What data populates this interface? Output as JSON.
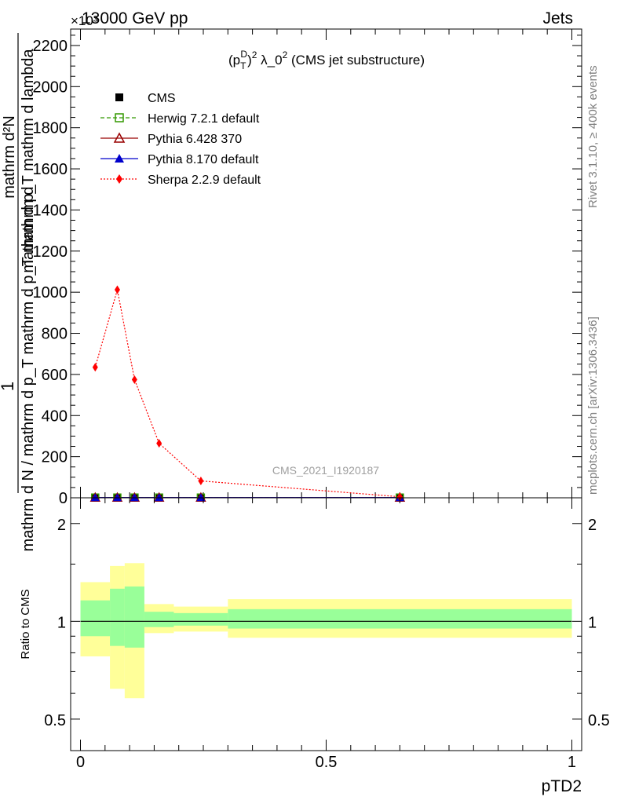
{
  "header": {
    "left": "13000 GeV pp",
    "right": "Jets",
    "exponent": "×10³"
  },
  "side_text": {
    "rivet": "Rivet 3.1.10, ≥ 400k events",
    "mcplots": "mcplots.cern.ch [arXiv:1306.3436]"
  },
  "watermark": "CMS_2021_I1920187",
  "plot_title": "(p_T^D)^2 λ_0^2 (CMS jet substructure)",
  "ylabel_top": {
    "numerator": "mathrm d²N",
    "line1": "mathrm d p_T mathrm d lambda",
    "denominator": "mathrm d N / mathrm d p_T mathrm d p_T mathrm d",
    "one": "1"
  },
  "ratio_ylabel": "Ratio to CMS",
  "xlabel": "pTD2",
  "legend": [
    {
      "label": "CMS",
      "color": "#000000",
      "marker": "square-filled",
      "line": "none"
    },
    {
      "label": "Herwig 7.2.1 default",
      "color": "#339900",
      "marker": "square-open",
      "line": "dashed"
    },
    {
      "label": "Pythia 6.428 370",
      "color": "#990000",
      "marker": "triangle-open",
      "line": "solid"
    },
    {
      "label": "Pythia 8.170 default",
      "color": "#0000cc",
      "marker": "triangle-filled",
      "line": "solid"
    },
    {
      "label": "Sherpa 2.2.9 default",
      "color": "#ff0000",
      "marker": "diamond-filled",
      "line": "dotted"
    }
  ],
  "chart_data": {
    "type": "line",
    "x_axis": {
      "range": [
        -0.02,
        1.02
      ],
      "ticks": [
        0,
        0.5,
        1
      ],
      "tick_labels": [
        "0",
        "0.5",
        "1"
      ]
    },
    "main_y_axis": {
      "range": [
        0,
        2280
      ],
      "ticks": [
        0,
        200,
        400,
        600,
        800,
        1000,
        1200,
        1400,
        1600,
        1800,
        2000,
        2200
      ],
      "tick_labels": [
        "0",
        "200",
        "400",
        "600",
        "800",
        "1000",
        "1200",
        "1400",
        "1600",
        "1800",
        "2000",
        "2200"
      ],
      "scale_note": "×10³"
    },
    "ratio_y_axis": {
      "range": [
        0.4,
        2.4
      ],
      "scale": "log",
      "ticks": [
        0.5,
        1,
        2
      ],
      "tick_labels": [
        "0.5",
        "1",
        "2"
      ]
    },
    "x": [
      0.03,
      0.075,
      0.11,
      0.16,
      0.245,
      0.65
    ],
    "series": [
      {
        "name": "CMS",
        "values": [
          1,
          1,
          1,
          1,
          1,
          1
        ]
      },
      {
        "name": "Herwig 7.2.1 default",
        "values": [
          1,
          1,
          1,
          1,
          1,
          1
        ]
      },
      {
        "name": "Pythia 6.428 370",
        "values": [
          1,
          1,
          1,
          1,
          1,
          1
        ]
      },
      {
        "name": "Pythia 8.170 default",
        "values": [
          1,
          1,
          1,
          1,
          1,
          1
        ]
      },
      {
        "name": "Sherpa 2.2.9 default",
        "values": [
          635,
          1012,
          575,
          265,
          82,
          5
        ]
      }
    ],
    "ratio_bands": [
      {
        "xlo": 0.0,
        "xhi": 0.06,
        "green": [
          0.9,
          1.16
        ],
        "yellow": [
          0.78,
          1.32
        ]
      },
      {
        "xlo": 0.06,
        "xhi": 0.09,
        "green": [
          0.84,
          1.26
        ],
        "yellow": [
          0.62,
          1.48
        ]
      },
      {
        "xlo": 0.09,
        "xhi": 0.13,
        "green": [
          0.83,
          1.28
        ],
        "yellow": [
          0.58,
          1.51
        ]
      },
      {
        "xlo": 0.13,
        "xhi": 0.19,
        "green": [
          0.96,
          1.07
        ],
        "yellow": [
          0.92,
          1.13
        ]
      },
      {
        "xlo": 0.19,
        "xhi": 0.3,
        "green": [
          0.97,
          1.06
        ],
        "yellow": [
          0.93,
          1.11
        ]
      },
      {
        "xlo": 0.3,
        "xhi": 1.0,
        "green": [
          0.95,
          1.09
        ],
        "yellow": [
          0.89,
          1.17
        ]
      }
    ],
    "grid": false,
    "legend_position": "top-left"
  }
}
